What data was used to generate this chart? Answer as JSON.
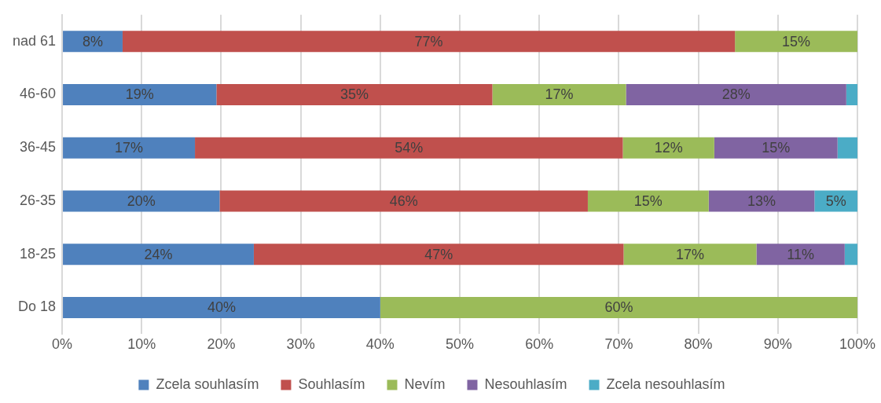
{
  "chart_data": {
    "type": "bar",
    "orientation": "horizontal",
    "stacked": true,
    "categories": [
      "nad 61",
      "46-60",
      "36-45",
      "26-35",
      "18-25",
      "Do 18"
    ],
    "series": [
      {
        "name": "Zcela souhlasím",
        "color": "#4f81bd",
        "values": [
          7.6,
          19.4,
          16.7,
          19.8,
          24.1,
          40
        ],
        "value_labels": [
          "8%",
          "19%",
          "17%",
          "20%",
          "24%",
          "40%"
        ]
      },
      {
        "name": "Souhlasím",
        "color": "#c0504d",
        "values": [
          77,
          34.7,
          53.8,
          46.3,
          46.5,
          null
        ],
        "value_labels": [
          "77%",
          "35%",
          "54%",
          "46%",
          "47%",
          null
        ]
      },
      {
        "name": "Nevím",
        "color": "#9bbb59",
        "values": [
          15.4,
          16.8,
          11.5,
          15.2,
          16.7,
          60
        ],
        "value_labels": [
          "15%",
          "17%",
          "12%",
          "15%",
          "17%",
          "60%"
        ]
      },
      {
        "name": "Nesouhlasím",
        "color": "#8064a2",
        "values": [
          null,
          27.7,
          15.5,
          13.3,
          11.1,
          null
        ],
        "value_labels": [
          null,
          "28%",
          "15%",
          "13%",
          "11%",
          null
        ]
      },
      {
        "name": "Zcela nesouhlasím",
        "color": "#4bacc6",
        "values": [
          null,
          1.4,
          2.5,
          5.4,
          1.6,
          null
        ],
        "value_labels": [
          null,
          null,
          null,
          "5%",
          null,
          null
        ]
      }
    ],
    "xlim": [
      0,
      100
    ],
    "xticks": [
      {
        "value": 0,
        "label": "0%"
      },
      {
        "value": 10,
        "label": "10%"
      },
      {
        "value": 20,
        "label": "20%"
      },
      {
        "value": 30,
        "label": "30%"
      },
      {
        "value": 40,
        "label": "40%"
      },
      {
        "value": 50,
        "label": "50%"
      },
      {
        "value": 60,
        "label": "60%"
      },
      {
        "value": 70,
        "label": "70%"
      },
      {
        "value": 80,
        "label": "80%"
      },
      {
        "value": 90,
        "label": "90%"
      },
      {
        "value": 100,
        "label": "100%"
      }
    ],
    "grid": "x",
    "legend": "bottom"
  }
}
